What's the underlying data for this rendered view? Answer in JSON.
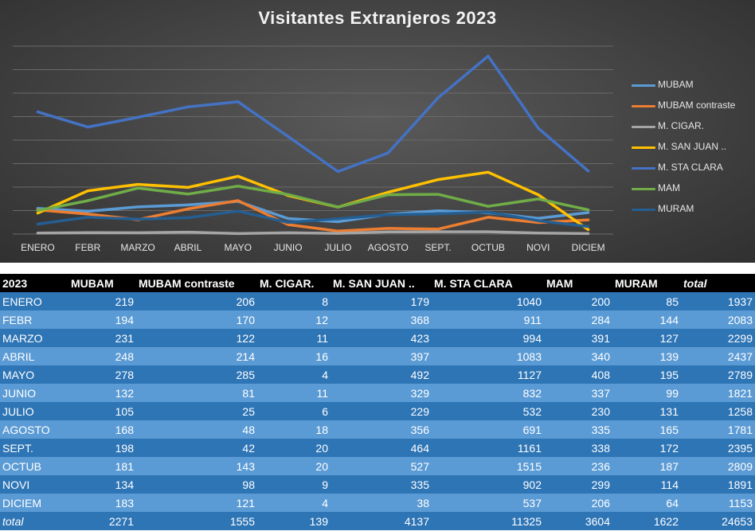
{
  "chart_data": {
    "type": "line",
    "title": "Visitantes Extranjeros 2023",
    "categories": [
      "ENERO",
      "FEBR",
      "MARZO",
      "ABRIL",
      "MAYO",
      "JUNIO",
      "JULIO",
      "AGOSTO",
      "SEPT.",
      "OCTUB",
      "NOVI",
      "DICIEM"
    ],
    "ylim": [
      0,
      1600
    ],
    "grid": true,
    "legend_position": "right",
    "series": [
      {
        "name": "MUBAM",
        "color": "#5b9bd5",
        "values": [
          219,
          194,
          231,
          248,
          278,
          132,
          105,
          168,
          198,
          181,
          134,
          183
        ]
      },
      {
        "name": "MUBAM contraste",
        "color": "#ed7d31",
        "values": [
          206,
          170,
          122,
          214,
          285,
          81,
          25,
          48,
          42,
          143,
          98,
          121
        ]
      },
      {
        "name": "M. CIGAR.",
        "color": "#a5a5a5",
        "values": [
          8,
          12,
          11,
          16,
          4,
          11,
          6,
          18,
          20,
          20,
          9,
          4
        ]
      },
      {
        "name": "M. SAN JUAN ..",
        "color": "#ffc000",
        "values": [
          179,
          368,
          423,
          397,
          492,
          329,
          229,
          356,
          464,
          527,
          335,
          38
        ]
      },
      {
        "name": "M. STA CLARA",
        "color": "#4472c4",
        "values": [
          1040,
          911,
          994,
          1083,
          1127,
          832,
          532,
          691,
          1161,
          1515,
          902,
          537
        ]
      },
      {
        "name": "MAM",
        "color": "#70ad47",
        "values": [
          200,
          284,
          391,
          340,
          408,
          337,
          230,
          335,
          338,
          236,
          299,
          206
        ]
      },
      {
        "name": "MURAM",
        "color": "#255e91",
        "values": [
          85,
          144,
          127,
          139,
          195,
          99,
          131,
          165,
          172,
          187,
          114,
          64
        ]
      }
    ]
  },
  "table": {
    "headers": [
      "2023",
      "MUBAM",
      "MUBAM contraste",
      "M. CIGAR.",
      "M. SAN JUAN ..",
      "M. STA CLARA",
      "MAM",
      "MURAM",
      "total"
    ],
    "rows": [
      [
        "ENERO",
        "219",
        "206",
        "8",
        "179",
        "1040",
        "200",
        "85",
        "1937"
      ],
      [
        "FEBR",
        "194",
        "170",
        "12",
        "368",
        "911",
        "284",
        "144",
        "2083"
      ],
      [
        "MARZO",
        "231",
        "122",
        "11",
        "423",
        "994",
        "391",
        "127",
        "2299"
      ],
      [
        "ABRIL",
        "248",
        "214",
        "16",
        "397",
        "1083",
        "340",
        "139",
        "2437"
      ],
      [
        "MAYO",
        "278",
        "285",
        "4",
        "492",
        "1127",
        "408",
        "195",
        "2789"
      ],
      [
        "JUNIO",
        "132",
        "81",
        "11",
        "329",
        "832",
        "337",
        "99",
        "1821"
      ],
      [
        "JULIO",
        "105",
        "25",
        "6",
        "229",
        "532",
        "230",
        "131",
        "1258"
      ],
      [
        "AGOSTO",
        "168",
        "48",
        "18",
        "356",
        "691",
        "335",
        "165",
        "1781"
      ],
      [
        "SEPT.",
        "198",
        "42",
        "20",
        "464",
        "1161",
        "338",
        "172",
        "2395"
      ],
      [
        "OCTUB",
        "181",
        "143",
        "20",
        "527",
        "1515",
        "236",
        "187",
        "2809"
      ],
      [
        "NOVI",
        "134",
        "98",
        "9",
        "335",
        "902",
        "299",
        "114",
        "1891"
      ],
      [
        "DICIEM",
        "183",
        "121",
        "4",
        "38",
        "537",
        "206",
        "64",
        "1153"
      ]
    ],
    "total_row": [
      "total",
      "2271",
      "1555",
      "139",
      "4137",
      "11325",
      "3604",
      "1622",
      "24653"
    ]
  }
}
